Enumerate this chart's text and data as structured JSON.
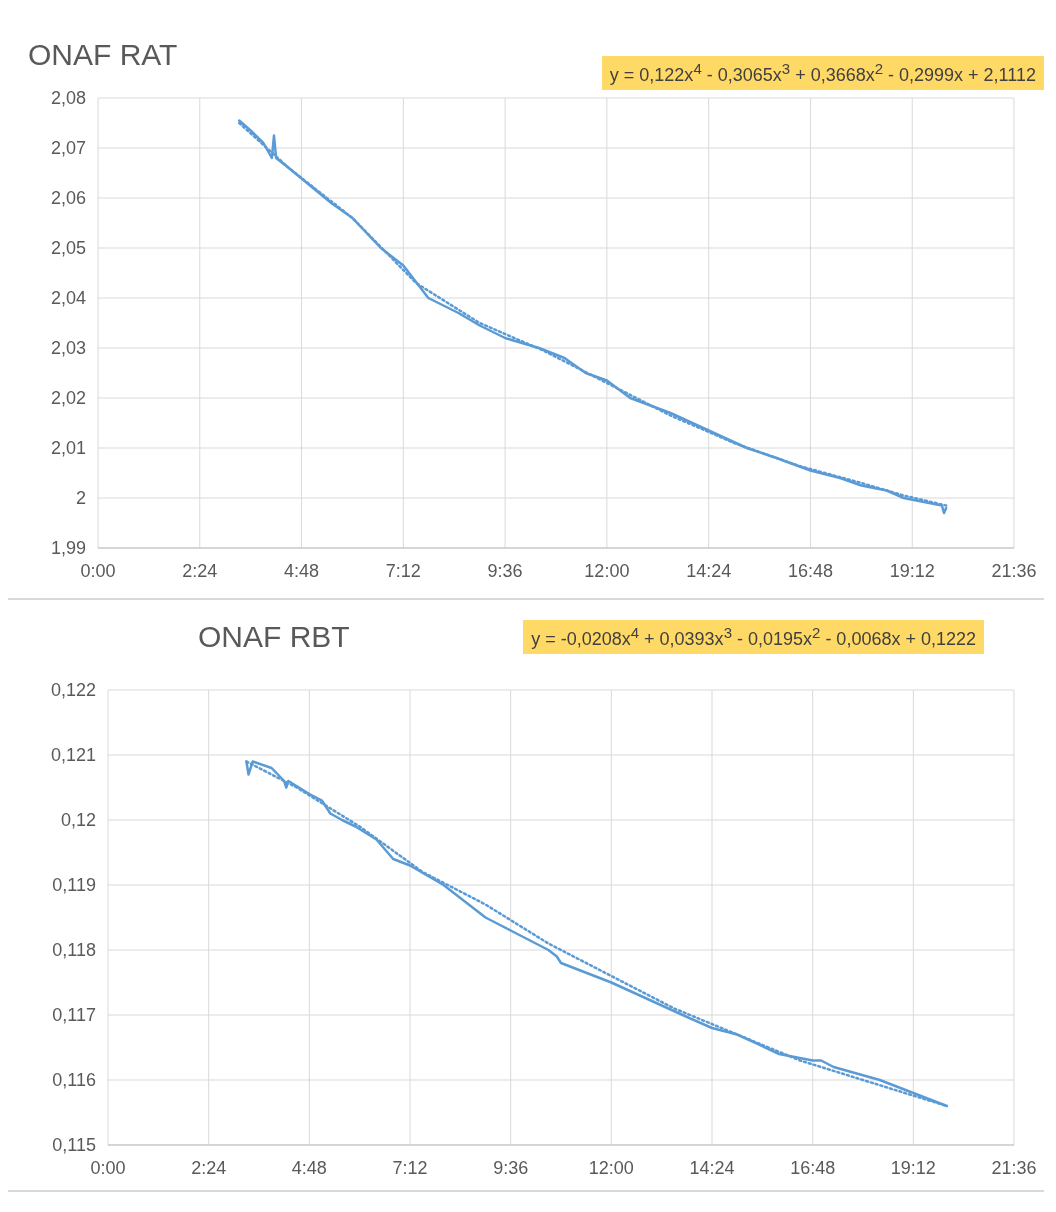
{
  "chart_data": [
    {
      "type": "line",
      "title": "ONAF RAT",
      "annotations": [
        "y = 0,122x$^{4}$ - 0,3065x$^{3}$ + 0,3668x$^{2}$ - 0,2999x + 2,1112"
      ],
      "xlim": [
        0,
        21.6
      ],
      "xticks": [
        {
          "value": 0,
          "label": "0:00"
        },
        {
          "value": 2.4,
          "label": "2:24"
        },
        {
          "value": 4.8,
          "label": "4:48"
        },
        {
          "value": 7.2,
          "label": "7:12"
        },
        {
          "value": 9.6,
          "label": "9:36"
        },
        {
          "value": 12,
          "label": "12:00"
        },
        {
          "value": 14.4,
          "label": "14:24"
        },
        {
          "value": 16.8,
          "label": "16:48"
        },
        {
          "value": 19.2,
          "label": "19:12"
        },
        {
          "value": 21.6,
          "label": "21:36"
        }
      ],
      "ylim": [
        1.99,
        2.08
      ],
      "yticks": [
        {
          "value": 1.99,
          "label": "1,99"
        },
        {
          "value": 2,
          "label": "2"
        },
        {
          "value": 2.01,
          "label": "2,01"
        },
        {
          "value": 2.02,
          "label": "2,02"
        },
        {
          "value": 2.03,
          "label": "2,03"
        },
        {
          "value": 2.04,
          "label": "2,04"
        },
        {
          "value": 2.05,
          "label": "2,05"
        },
        {
          "value": 2.06,
          "label": "2,06"
        },
        {
          "value": 2.07,
          "label": "2,07"
        },
        {
          "value": 2.08,
          "label": "2,08"
        }
      ],
      "grid": true,
      "marker": "none",
      "series": [
        {
          "color": "#5b9bd5",
          "line_style": "solid",
          "x": [
            3.33,
            3.6,
            3.9,
            4.1,
            4.15,
            4.2,
            4.5,
            5.07,
            5.5,
            6.0,
            6.67,
            7.2,
            7.79,
            8.5,
            9.0,
            9.6,
            10.4,
            11.0,
            11.5,
            12.0,
            12.55,
            13.5,
            14.4,
            15.3,
            16.0,
            16.8,
            17.5,
            18.0,
            18.6,
            19.0,
            19.6,
            19.9,
            19.95,
            20.0
          ],
          "values": [
            2.0755,
            2.0735,
            2.071,
            2.068,
            2.0725,
            2.068,
            2.066,
            2.062,
            2.059,
            2.056,
            2.05,
            2.0465,
            2.04,
            2.037,
            2.0345,
            2.032,
            2.03,
            2.028,
            2.025,
            2.0235,
            2.02,
            2.017,
            2.0135,
            2.01,
            2.008,
            2.0055,
            2.004,
            2.0025,
            2.0015,
            2.0,
            1.999,
            1.9985,
            1.997,
            1.998
          ]
        },
        {
          "color": "#5b9bd5",
          "line_style": "dotted",
          "x": [
            3.33,
            4.5,
            6.0,
            7.5,
            9.0,
            10.5,
            12.0,
            13.5,
            15.0,
            16.5,
            18.0,
            19.0,
            20.0
          ],
          "values": [
            2.075,
            2.066,
            2.056,
            2.043,
            2.035,
            2.0295,
            2.023,
            2.0165,
            2.011,
            2.0065,
            2.003,
            2.0005,
            1.9985
          ]
        }
      ]
    },
    {
      "type": "line",
      "title": "ONAF RBT",
      "annotations": [
        "y = -0,0208x$^{4}$ + 0,0393x$^{3}$ - 0,0195x$^{2}$ - 0,0068x + 0,1222"
      ],
      "xlim": [
        0,
        21.6
      ],
      "xticks": [
        {
          "value": 0,
          "label": "0:00"
        },
        {
          "value": 2.4,
          "label": "2:24"
        },
        {
          "value": 4.8,
          "label": "4:48"
        },
        {
          "value": 7.2,
          "label": "7:12"
        },
        {
          "value": 9.6,
          "label": "9:36"
        },
        {
          "value": 12,
          "label": "12:00"
        },
        {
          "value": 14.4,
          "label": "14:24"
        },
        {
          "value": 16.8,
          "label": "16:48"
        },
        {
          "value": 19.2,
          "label": "19:12"
        },
        {
          "value": 21.6,
          "label": "21:36"
        }
      ],
      "ylim": [
        0.115,
        0.122
      ],
      "yticks": [
        {
          "value": 0.115,
          "label": "0,115"
        },
        {
          "value": 0.116,
          "label": "0,116"
        },
        {
          "value": 0.117,
          "label": "0,117"
        },
        {
          "value": 0.118,
          "label": "0,118"
        },
        {
          "value": 0.119,
          "label": "0,119"
        },
        {
          "value": 0.12,
          "label": "0,12"
        },
        {
          "value": 0.121,
          "label": "0,121"
        },
        {
          "value": 0.122,
          "label": "0,122"
        }
      ],
      "grid": true,
      "marker": "none",
      "series": [
        {
          "color": "#5b9bd5",
          "line_style": "solid",
          "x": [
            3.3,
            3.35,
            3.45,
            3.9,
            4.2,
            4.25,
            4.3,
            4.8,
            5.1,
            5.3,
            5.58,
            5.9,
            6.4,
            6.8,
            7.2,
            8.0,
            8.6,
            9.0,
            9.3,
            9.6,
            10.5,
            10.7,
            10.8,
            12.0,
            13.7,
            14.4,
            15.0,
            16.0,
            16.8,
            17.0,
            17.3,
            18.4,
            19.2,
            20.0
          ],
          "values": [
            0.1209,
            0.1207,
            0.1209,
            0.1208,
            0.1206,
            0.1205,
            0.1206,
            0.1204,
            0.1203,
            0.1201,
            0.12,
            0.1199,
            0.1197,
            0.1194,
            0.1193,
            0.119,
            0.1187,
            0.1185,
            0.1184,
            0.1183,
            0.118,
            0.1179,
            0.1178,
            0.1175,
            0.117,
            0.1168,
            0.1167,
            0.1164,
            0.1163,
            0.1163,
            0.1162,
            0.116,
            0.1158,
            0.1156
          ]
        },
        {
          "color": "#5b9bd5",
          "line_style": "dotted",
          "x": [
            3.3,
            4.5,
            6.0,
            7.5,
            9.0,
            10.5,
            12.0,
            13.5,
            15.0,
            16.5,
            18.0,
            19.0,
            20.0
          ],
          "values": [
            0.1209,
            0.1205,
            0.1199,
            0.1192,
            0.1187,
            0.1181,
            0.1176,
            0.1171,
            0.1167,
            0.1163,
            0.116,
            0.1158,
            0.1156
          ]
        }
      ]
    }
  ]
}
